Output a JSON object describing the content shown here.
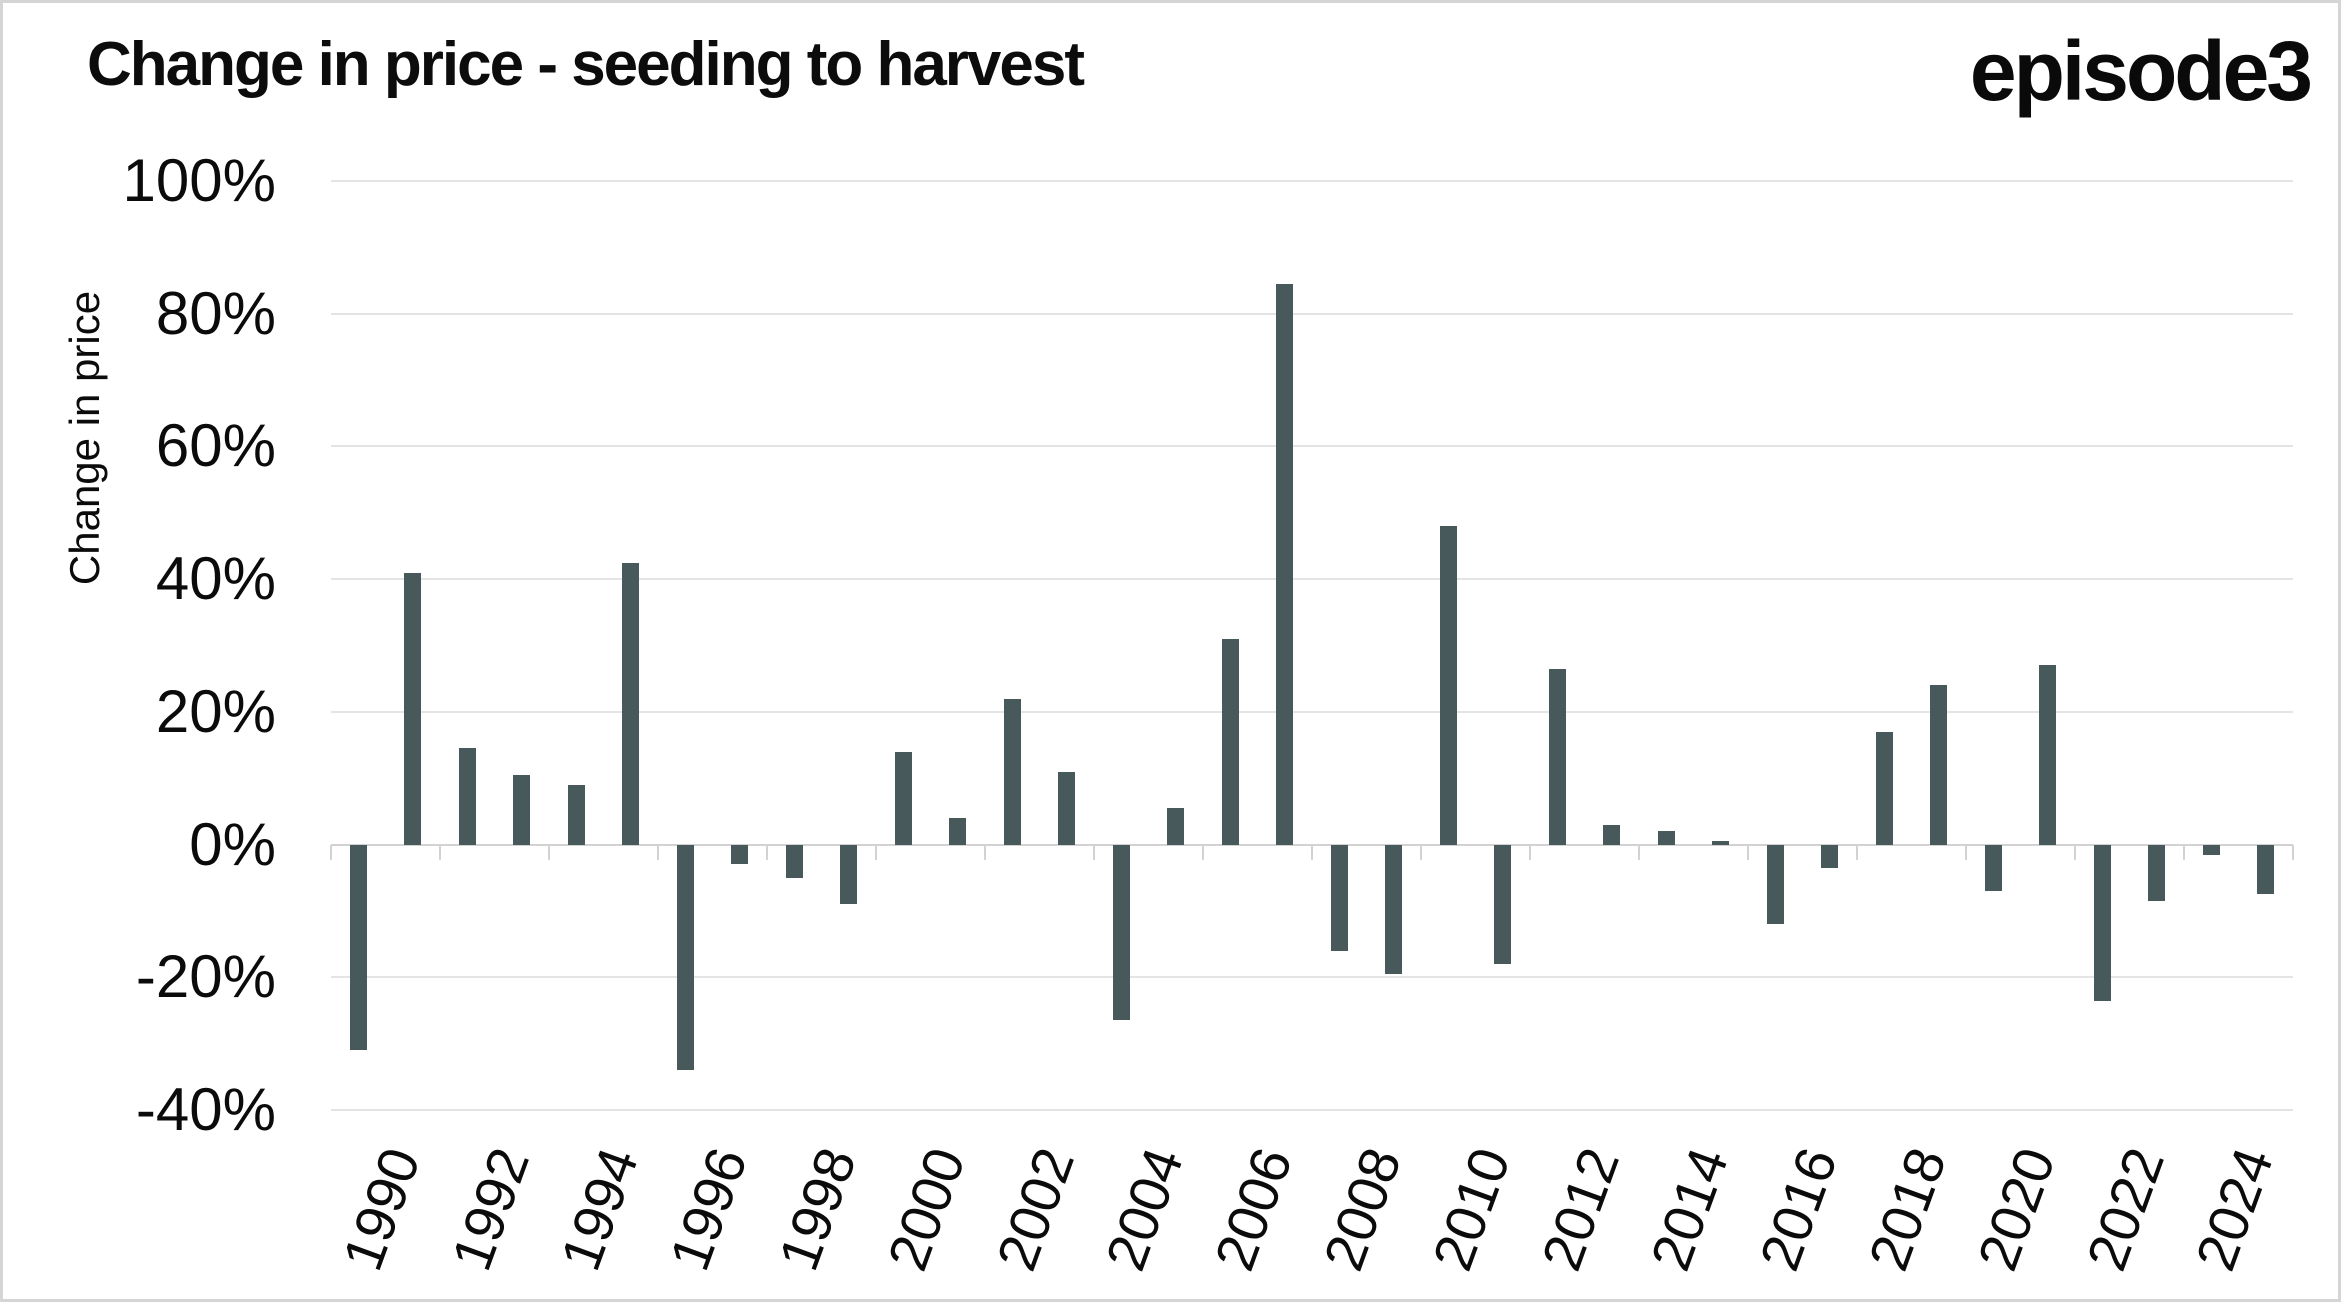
{
  "header": {
    "title": "Change in price - seeding to harvest",
    "logo": "episode3"
  },
  "chart_data": {
    "type": "bar",
    "title": "Change in price - seeding to harvest",
    "xlabel": "",
    "ylabel": "Change in price",
    "ylim": [
      -40,
      100
    ],
    "ytick_step": 20,
    "ytick_labels": [
      "100%",
      "80%",
      "60%",
      "40%",
      "20%",
      "0%",
      "-20%",
      "-40%"
    ],
    "xtick_labels": [
      "1990",
      "1992",
      "1994",
      "1996",
      "1998",
      "2000",
      "2002",
      "2004",
      "2006",
      "2008",
      "2010",
      "2012",
      "2014",
      "2016",
      "2018",
      "2020",
      "2022",
      "2024"
    ],
    "grid": "horizontal",
    "legend": "none",
    "bar_color": "#47595b",
    "categories": [
      1990,
      1991,
      1992,
      1993,
      1994,
      1995,
      1996,
      1997,
      1998,
      1999,
      2000,
      2001,
      2002,
      2003,
      2004,
      2005,
      2006,
      2007,
      2008,
      2009,
      2010,
      2011,
      2012,
      2013,
      2014,
      2015,
      2016,
      2017,
      2018,
      2019,
      2020,
      2021,
      2022,
      2023,
      2024,
      2025
    ],
    "values": [
      -31,
      41,
      14.5,
      10.5,
      9,
      42.5,
      -34,
      -3,
      -5,
      -9,
      14,
      4,
      22,
      11,
      -26.5,
      5.5,
      31,
      84.5,
      -16,
      -19.5,
      48,
      -18,
      26.5,
      3,
      2,
      0.5,
      -12,
      -3.5,
      17,
      24,
      -7,
      27,
      -23.5,
      -8.5,
      -1.5,
      -7.5
    ]
  }
}
